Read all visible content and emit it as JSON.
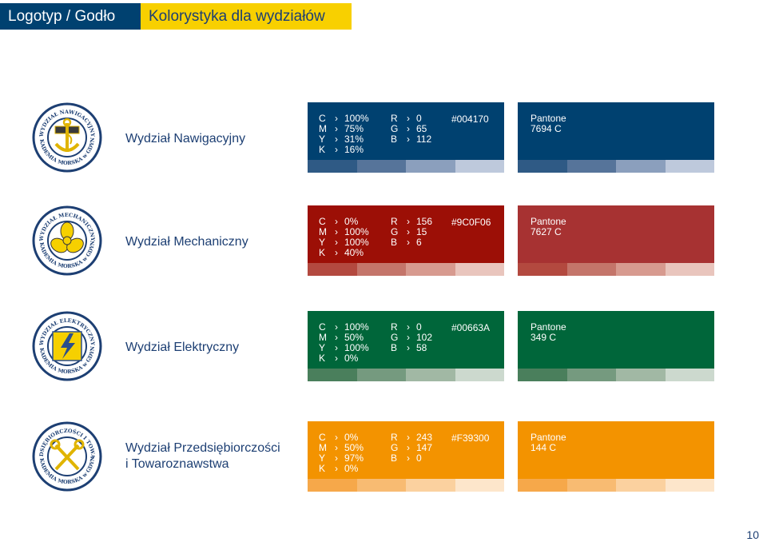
{
  "header": {
    "title_left": "Logotyp / Godło",
    "title_right": "Kolorystyka dla wydziałów"
  },
  "logo_text": {
    "top": "WYDZIAŁ",
    "bottom": "AKADEMIA MORSKA w GDYNI"
  },
  "departments": [
    {
      "name_lines": [
        "Wydział Nawigacyjny"
      ],
      "logo_top": "WYDZIAŁ NAWIGACYJNY",
      "color": "#004170",
      "cmyk": [
        "100%",
        "75%",
        "31%",
        "16%"
      ],
      "rgb": [
        "0",
        "65",
        "112"
      ],
      "hex": "#004170",
      "pantone": [
        "Pantone",
        "7694 C"
      ],
      "tints": [
        "#2f5a85",
        "#56749a",
        "#8b9fbd",
        "#bec9dc"
      ],
      "icon": "anchor-icon"
    },
    {
      "name_lines": [
        "Wydział Mechaniczny"
      ],
      "logo_top": "WYDZIAŁ MECHANICZNY",
      "color": "#9C0F06",
      "pantone_color": "#a73232",
      "cmyk": [
        "0%",
        "100%",
        "100%",
        "40%"
      ],
      "rgb": [
        "156",
        "15",
        "6"
      ],
      "hex": "#9C0F06",
      "pantone": [
        "Pantone",
        "7627 C"
      ],
      "tints": [
        "#b3493f",
        "#c4756a",
        "#d79a8f",
        "#e9c5bd"
      ],
      "icon": "propeller-icon"
    },
    {
      "name_lines": [
        "Wydział Elektryczny"
      ],
      "logo_top": "WYDZIAŁ ELEKTRYCZNY",
      "color": "#00663A",
      "cmyk": [
        "100%",
        "50%",
        "100%",
        "0%"
      ],
      "rgb": [
        "0",
        "102",
        "58"
      ],
      "hex": "#00663A",
      "pantone": [
        "Pantone",
        "349 C"
      ],
      "tints": [
        "#4a7f5c",
        "#759a7f",
        "#a1b8a4",
        "#ccd9ce"
      ],
      "icon": "lightning-icon"
    },
    {
      "name_lines": [
        "Wydział Przedsiębiorczości",
        "i Towaroznawstwa"
      ],
      "logo_top": "WYDZIAŁ PRZEDSIĘBIORCZOŚCI I TOWAROZNAWSTWA",
      "color": "#F39300",
      "cmyk": [
        "0%",
        "50%",
        "97%",
        "0%"
      ],
      "rgb": [
        "243",
        "147",
        "0"
      ],
      "hex": "#F39300",
      "pantone": [
        "Pantone",
        "144 C"
      ],
      "tints": [
        "#f6a84a",
        "#f8bb72",
        "#fbd19f",
        "#fde6cb"
      ],
      "icon": "keys-icon"
    }
  ],
  "labels": {
    "c": "C",
    "m": "M",
    "y": "Y",
    "k": "K",
    "r": "R",
    "g": "G",
    "b": "B",
    "arrow": "›"
  },
  "page_number": "10"
}
